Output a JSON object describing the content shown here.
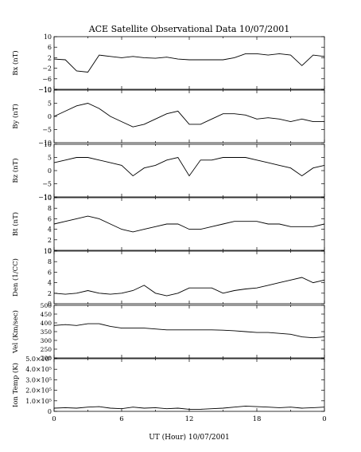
{
  "title": "ACE Satellite Observational Data   10/07/2001",
  "xlabel": "UT (Hour)   10/07/2001",
  "x_ticks": [
    "0",
    "6",
    "12",
    "18",
    "0"
  ],
  "chart_data": [
    {
      "type": "line",
      "name": "bx",
      "ylabel": "Bx (nT)",
      "ylim": [
        -10,
        10
      ],
      "y_ticks": [
        "10",
        "6",
        "2",
        "−2",
        "−6",
        "−10"
      ],
      "x": [
        0,
        1,
        2,
        3,
        4,
        5,
        6,
        7,
        8,
        9,
        10,
        11,
        12,
        13,
        14,
        15,
        16,
        17,
        18,
        19,
        20,
        21,
        22,
        23,
        24
      ],
      "values": [
        1.5,
        1.2,
        -3,
        -3.5,
        3,
        2.5,
        2,
        2.5,
        2,
        1.8,
        2.2,
        1.5,
        1.2,
        1.2,
        1.2,
        1.2,
        2,
        3.5,
        3.5,
        3,
        3.5,
        3,
        -1,
        3,
        2.5
      ]
    },
    {
      "type": "line",
      "name": "by",
      "ylabel": "By (nT)",
      "ylim": [
        -10,
        10
      ],
      "y_ticks": [
        "10",
        "5",
        "0",
        "−5",
        "−10"
      ],
      "x": [
        0,
        1,
        2,
        3,
        4,
        5,
        6,
        7,
        8,
        9,
        10,
        11,
        12,
        13,
        14,
        15,
        16,
        17,
        18,
        19,
        20,
        21,
        22,
        23,
        24
      ],
      "values": [
        0,
        2,
        4,
        5,
        3,
        0,
        -2,
        -4,
        -3,
        -1,
        1,
        2,
        -3,
        -3,
        -1,
        1,
        1,
        0.5,
        -1,
        -0.5,
        -1,
        -2,
        -1,
        -2,
        -2
      ]
    },
    {
      "type": "line",
      "name": "bz",
      "ylabel": "Bz (nT)",
      "ylim": [
        -10,
        10
      ],
      "y_ticks": [
        "10",
        "5",
        "0",
        "−5",
        "−10"
      ],
      "x": [
        0,
        1,
        2,
        3,
        4,
        5,
        6,
        7,
        8,
        9,
        10,
        11,
        12,
        13,
        14,
        15,
        16,
        17,
        18,
        19,
        20,
        21,
        22,
        23,
        24
      ],
      "values": [
        3,
        4,
        5,
        5,
        4,
        3,
        2,
        -2,
        1,
        2,
        4,
        5,
        -2,
        4,
        4,
        5,
        5,
        5,
        4,
        3,
        2,
        1,
        -2,
        1,
        2
      ]
    },
    {
      "type": "line",
      "name": "bt",
      "ylabel": "Bt (nT)",
      "ylim": [
        0,
        10
      ],
      "y_ticks": [
        "10",
        "8",
        "6",
        "4",
        "2",
        "0"
      ],
      "x": [
        0,
        1,
        2,
        3,
        4,
        5,
        6,
        7,
        8,
        9,
        10,
        11,
        12,
        13,
        14,
        15,
        16,
        17,
        18,
        19,
        20,
        21,
        22,
        23,
        24
      ],
      "values": [
        5,
        5.5,
        6,
        6.5,
        6,
        5,
        4,
        3.5,
        4,
        4.5,
        5,
        5,
        4,
        4,
        4.5,
        5,
        5.5,
        5.5,
        5.5,
        5,
        5,
        4.5,
        4.5,
        4.5,
        5
      ]
    },
    {
      "type": "line",
      "name": "den",
      "ylabel": "Den (1/CC)",
      "ylim": [
        0,
        10
      ],
      "y_ticks": [
        "10",
        "8",
        "6",
        "4",
        "2",
        "0"
      ],
      "x": [
        0,
        1,
        2,
        3,
        4,
        5,
        6,
        7,
        8,
        9,
        10,
        11,
        12,
        13,
        14,
        15,
        16,
        17,
        18,
        19,
        20,
        21,
        22,
        23,
        24
      ],
      "values": [
        2,
        1.8,
        2,
        2.5,
        2,
        1.8,
        2,
        2.5,
        3.5,
        2,
        1.5,
        2,
        3,
        3,
        3,
        2,
        2.5,
        2.8,
        3,
        3.5,
        4,
        4.5,
        5,
        4,
        4.5
      ]
    },
    {
      "type": "line",
      "name": "vel",
      "ylabel": "Vel (Km/sec)",
      "ylim": [
        200,
        500
      ],
      "y_ticks": [
        "500",
        "450",
        "400",
        "350",
        "300",
        "250",
        "200"
      ],
      "x": [
        0,
        1,
        2,
        3,
        4,
        5,
        6,
        7,
        8,
        9,
        10,
        11,
        12,
        13,
        14,
        15,
        16,
        17,
        18,
        19,
        20,
        21,
        22,
        23,
        24
      ],
      "values": [
        385,
        390,
        385,
        395,
        395,
        380,
        370,
        370,
        370,
        365,
        360,
        360,
        360,
        360,
        360,
        358,
        355,
        350,
        345,
        345,
        340,
        335,
        320,
        315,
        320
      ]
    },
    {
      "type": "line",
      "name": "temp",
      "ylabel": "Ion Temp (K)",
      "ylim": [
        0,
        500000
      ],
      "y_ticks": [
        "5.0×10⁵",
        "4.0×10⁵",
        "3.0×10⁵",
        "2.0×10⁵",
        "1.0×10⁵",
        "0"
      ],
      "x": [
        0,
        1,
        2,
        3,
        4,
        5,
        6,
        7,
        8,
        9,
        10,
        11,
        12,
        13,
        14,
        15,
        16,
        17,
        18,
        19,
        20,
        21,
        22,
        23,
        24
      ],
      "values": [
        30000,
        35000,
        30000,
        40000,
        45000,
        30000,
        25000,
        40000,
        30000,
        35000,
        25000,
        30000,
        20000,
        20000,
        25000,
        30000,
        40000,
        50000,
        45000,
        40000,
        35000,
        40000,
        30000,
        35000,
        40000
      ]
    }
  ]
}
